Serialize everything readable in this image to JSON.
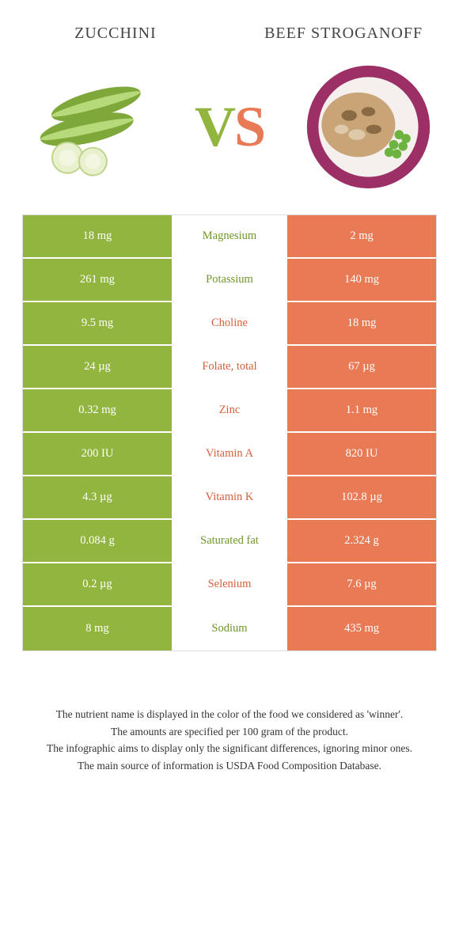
{
  "titles": {
    "left": "Zucchini",
    "right": "Beef Stroganoff"
  },
  "vs": {
    "v": "V",
    "s": "S"
  },
  "colors": {
    "left_bg": "#91b53f",
    "right_bg": "#e87a56",
    "left_text": "#6f9628",
    "right_text": "#d4603b",
    "cell_text": "#ffffff",
    "border": "#dddddd"
  },
  "rows": [
    {
      "left": "18 mg",
      "label": "Magnesium",
      "right": "2 mg",
      "winner": "left"
    },
    {
      "left": "261 mg",
      "label": "Potassium",
      "right": "140 mg",
      "winner": "left"
    },
    {
      "left": "9.5 mg",
      "label": "Choline",
      "right": "18 mg",
      "winner": "right"
    },
    {
      "left": "24 µg",
      "label": "Folate, total",
      "right": "67 µg",
      "winner": "right"
    },
    {
      "left": "0.32 mg",
      "label": "Zinc",
      "right": "1.1 mg",
      "winner": "right"
    },
    {
      "left": "200 IU",
      "label": "Vitamin A",
      "right": "820 IU",
      "winner": "right"
    },
    {
      "left": "4.3 µg",
      "label": "Vitamin K",
      "right": "102.8 µg",
      "winner": "right"
    },
    {
      "left": "0.084 g",
      "label": "Saturated fat",
      "right": "2.324 g",
      "winner": "left"
    },
    {
      "left": "0.2 µg",
      "label": "Selenium",
      "right": "7.6 µg",
      "winner": "right"
    },
    {
      "left": "8 mg",
      "label": "Sodium",
      "right": "435 mg",
      "winner": "left"
    }
  ],
  "footer": [
    "The nutrient name is displayed in the color of the food we considered as 'winner'.",
    "The amounts are specified per 100 gram of the product.",
    "The infographic aims to display only the significant differences, ignoring minor ones.",
    "The main source of information is USDA Food Composition Database."
  ]
}
